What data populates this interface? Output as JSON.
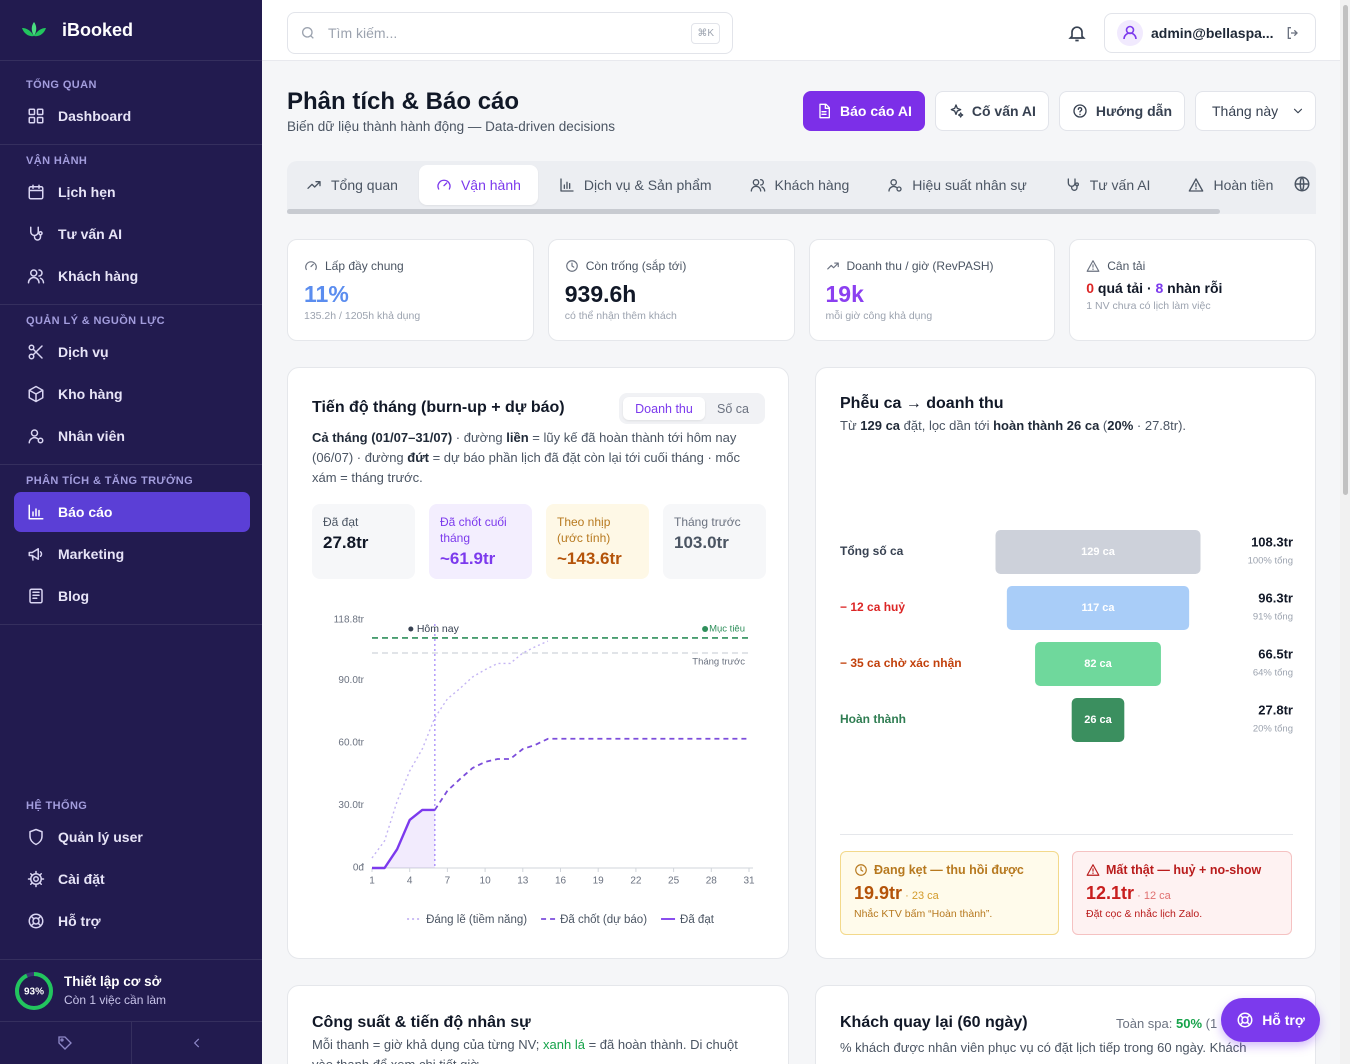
{
  "sidebar": {
    "brand": "iBooked",
    "sections": [
      {
        "title": "TỔNG QUAN",
        "items": [
          {
            "label": "Dashboard"
          }
        ]
      },
      {
        "title": "VẬN HÀNH",
        "items": [
          {
            "label": "Lịch hẹn"
          },
          {
            "label": "Tư vấn AI"
          },
          {
            "label": "Khách hàng"
          }
        ]
      },
      {
        "title": "QUẢN LÝ & NGUỒN LỰC",
        "items": [
          {
            "label": "Dịch vụ"
          },
          {
            "label": "Kho hàng"
          },
          {
            "label": "Nhân viên"
          }
        ]
      },
      {
        "title": "PHÂN TÍCH & TĂNG TRƯỞNG",
        "items": [
          {
            "label": "Báo cáo",
            "active": true
          },
          {
            "label": "Marketing"
          },
          {
            "label": "Blog"
          }
        ]
      },
      {
        "title": "HỆ THỐNG",
        "items": [
          {
            "label": "Quản lý user"
          },
          {
            "label": "Cài đặt"
          },
          {
            "label": "Hỗ trợ"
          }
        ]
      }
    ],
    "setup": {
      "progress": {
        "value": 93,
        "label": "93%"
      },
      "title": "Thiết lập cơ sở",
      "subtitle": "Còn 1 việc cần làm"
    }
  },
  "topbar": {
    "search_placeholder": "Tìm kiếm...",
    "shortcut": "⌘K",
    "user": "admin@bellaspa..."
  },
  "header": {
    "title": "Phân tích & Báo cáo",
    "subtitle": "Biến dữ liệu thành hành động — Data-driven decisions",
    "actions": [
      {
        "label": "Báo cáo AI",
        "primary": true
      },
      {
        "label": "Cố vấn AI"
      },
      {
        "label": "Hướng dẫn"
      }
    ],
    "period": "Tháng này"
  },
  "tabs": [
    {
      "label": "Tổng quan"
    },
    {
      "label": "Vận hành",
      "active": true
    },
    {
      "label": "Dịch vụ & Sản phẩm"
    },
    {
      "label": "Khách hàng"
    },
    {
      "label": "Hiệu suất nhân sự"
    },
    {
      "label": "Tư vấn AI"
    },
    {
      "label": "Hoàn tiền"
    }
  ],
  "kpis": [
    {
      "label": "Lấp đầy chung",
      "value": "11%",
      "note": "135.2h / 1205h khả dụng",
      "color": "#5b8def"
    },
    {
      "label": "Còn trống (sắp tới)",
      "value": "939.6h",
      "note": "có thể nhận thêm khách"
    },
    {
      "label": "Doanh thu / giờ (RevPASH)",
      "value": "19k",
      "note": "mỗi giờ công khả dụng",
      "color": "#8b3ff0"
    },
    {
      "label": "Cân tải",
      "value_parts": [
        {
          "text": "0",
          "color": "#dc2626"
        },
        {
          "text": " quá tải · "
        },
        {
          "text": "8",
          "color": "#7c3aed"
        },
        {
          "text": " nhàn rỗi"
        }
      ],
      "note": "1 NV chưa có lịch làm việc"
    }
  ],
  "burnup_card": {
    "toggle": [
      {
        "label": "Doanh thu",
        "active": true
      },
      {
        "label": "Số ca"
      }
    ],
    "description": [
      {
        "text": "Cả tháng (01/07–31/07)",
        "bold": true
      },
      {
        "text": " · đường "
      },
      {
        "text": "liền",
        "bold": true
      },
      {
        "text": " = lũy kế đã hoàn thành tới hôm nay (06/07) · đường "
      },
      {
        "text": "đứt",
        "bold": true
      },
      {
        "text": " = dự báo phần lịch đã đặt còn lại tới cuối tháng · mốc xám = tháng trước."
      }
    ],
    "stats": [
      {
        "label": "Đã đạt",
        "value": "27.8tr",
        "tone": "gray"
      },
      {
        "label": "Đã chốt cuối tháng",
        "value": "~61.9tr",
        "tone": "purple"
      },
      {
        "label": "Theo nhịp (ước tính)",
        "value": "~143.6tr",
        "tone": "amber"
      },
      {
        "label": "Tháng trước",
        "value": "103.0tr",
        "tone": "muted"
      }
    ]
  },
  "chart_data": [
    {
      "type": "line",
      "title": "Tiến độ tháng (burn-up + dự báo)",
      "x": [
        1,
        2,
        3,
        4,
        5,
        6,
        7,
        8,
        9,
        10,
        11,
        12,
        13,
        14,
        15,
        16,
        17,
        18,
        19,
        20,
        21,
        22,
        23,
        24,
        25,
        26,
        27,
        28,
        29,
        30,
        31
      ],
      "series": [
        {
          "name": "Đáng lẽ (tiềm năng)",
          "color": "#c4b5f3",
          "line_style": "dotted",
          "values": [
            4.8,
            13,
            32,
            46.5,
            57,
            72,
            81,
            86,
            91.5,
            95,
            98,
            98,
            103,
            106,
            108.7,
            null,
            null,
            null,
            null,
            null,
            null,
            null,
            null,
            null,
            null,
            null,
            null,
            null,
            null,
            null,
            null
          ]
        },
        {
          "name": "Đã chốt (dự báo)",
          "color": "#7c4ddb",
          "line_style": "dashed",
          "values": [
            null,
            null,
            null,
            null,
            null,
            27.8,
            37,
            42.6,
            47.9,
            50.8,
            52.2,
            52.2,
            57,
            59,
            61.9,
            61.9,
            61.9,
            61.9,
            61.9,
            61.9,
            61.9,
            61.9,
            61.9,
            61.9,
            61.9,
            61.9,
            61.9,
            61.9,
            61.9,
            61.9,
            61.9
          ]
        },
        {
          "name": "Đã đạt",
          "color": "#7c3aed",
          "line_style": "solid",
          "area": true,
          "values": [
            0,
            0,
            9,
            23,
            27.8,
            27.8,
            null,
            null,
            null,
            null,
            null,
            null,
            null,
            null,
            null,
            null,
            null,
            null,
            null,
            null,
            null,
            null,
            null,
            null,
            null,
            null,
            null,
            null,
            null,
            null,
            null
          ]
        }
      ],
      "reference_lines": [
        {
          "label": "Mục tiêu",
          "value": 110.2,
          "color": "#2f8f5b"
        },
        {
          "label": "Tháng trước",
          "value": 103,
          "color": "#cfd3da"
        }
      ],
      "today": {
        "label": "Hôm nay",
        "x": 6
      },
      "xlim": [
        1,
        31
      ],
      "xticks": [
        1,
        4,
        7,
        10,
        13,
        16,
        19,
        22,
        25,
        28,
        31
      ],
      "ylim": [
        0,
        118.8
      ],
      "yticks": [
        {
          "value": 0,
          "label": "0đ"
        },
        {
          "value": 30,
          "label": "30.0tr"
        },
        {
          "value": 60,
          "label": "60.0tr"
        },
        {
          "value": 90,
          "label": "90.0tr"
        },
        {
          "value": 118.8,
          "label": "118.8tr"
        }
      ],
      "grid": false
    },
    {
      "type": "funnel",
      "title": "Phễu ca → doanh thu",
      "subtitle": [
        {
          "text": "Từ "
        },
        {
          "text": "129 ca",
          "bold": true
        },
        {
          "text": " đặt, lọc dần tới "
        },
        {
          "text": "hoàn thành 26 ca",
          "bold": true
        },
        {
          "text": " ("
        },
        {
          "text": "20%",
          "bold": true
        },
        {
          "text": " · 27.8tr)."
        }
      ],
      "categories": [
        "Tổng số ca",
        "− 12 ca huỷ",
        "− 35 ca chờ xác nhận",
        "Hoàn thành"
      ],
      "category_colors": [
        "#374151",
        "#dc2626",
        "#c2410c",
        "#2f7d52"
      ],
      "values": [
        108.3,
        96.3,
        66.5,
        27.8
      ],
      "value_labels": [
        "108.3tr",
        "96.3tr",
        "66.5tr",
        "27.8tr"
      ],
      "bar_labels": [
        "129 ca",
        "117 ca",
        "82 ca",
        "26 ca"
      ],
      "share_labels": [
        "100% tổng",
        "91% tổng",
        "64% tổng",
        "20% tổng"
      ],
      "colors": [
        "#cdd1da",
        "#a9cdf8",
        "#6fd89c",
        "#3b8f5f"
      ]
    }
  ],
  "funnel_callouts": [
    {
      "title": "Đang kẹt — thu hồi được",
      "value": "19.9tr",
      "detail": " · 23 ca",
      "note": "Nhắc KTV bấm “Hoàn thành”.",
      "tone": "amber"
    },
    {
      "title": "Mất thật — huỷ + no-show",
      "value": "12.1tr",
      "detail": " · 12 ca",
      "note": "Đặt cọc & nhắc lịch Zalo.",
      "tone": "red"
    }
  ],
  "staff_card": {
    "title": "Công suất & tiến độ nhân sự",
    "description": [
      {
        "text": "Mỗi thanh = giờ khả dụng của từng NV; "
      },
      {
        "text": "xanh lá",
        "color": "#16a34a"
      },
      {
        "text": " = đã hoàn thành. Di chuột vào thanh để xem chi tiết giờ."
      }
    ]
  },
  "retention_card": {
    "title": "Khách quay lại (60 ngày)",
    "summary": [
      {
        "text": "Toàn spa: "
      },
      {
        "text": "50%",
        "color": "#16a34a",
        "bold": true
      },
      {
        "text": " (1"
      }
    ],
    "description": "% khách được nhân viên phục vụ có đặt lịch tiếp trong 60 ngày. Khách"
  },
  "help_button": "Hỗ trợ"
}
